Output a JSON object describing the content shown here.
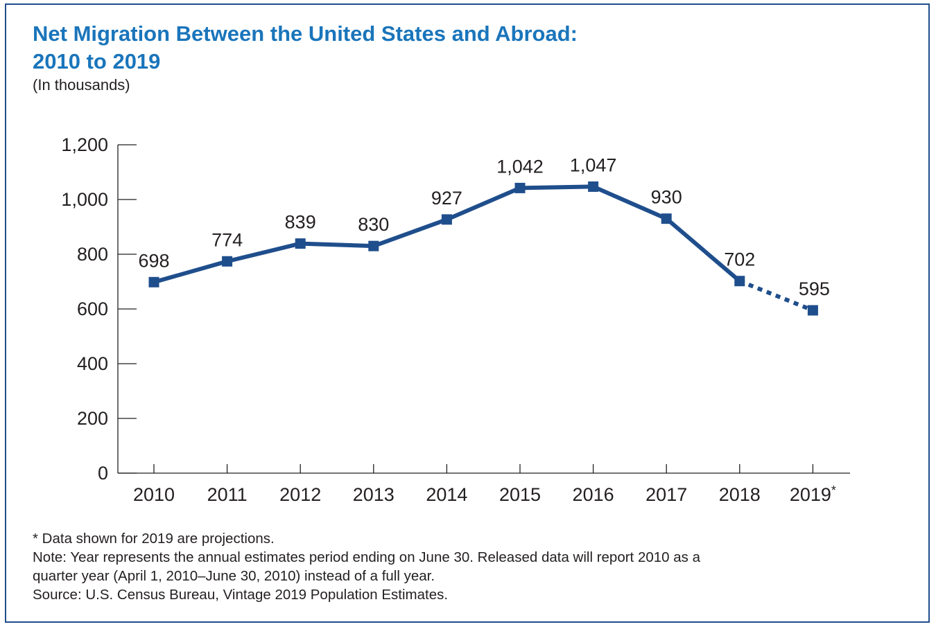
{
  "title_line1": "Net Migration Between the United States and Abroad:",
  "title_line2": "2010 to 2019",
  "subtitle": "(In thousands)",
  "chart_data": {
    "type": "line",
    "title": "Net Migration Between the United States and Abroad: 2010 to 2019",
    "unit": "(In thousands)",
    "categories": [
      "2010",
      "2011",
      "2012",
      "2013",
      "2014",
      "2015",
      "2016",
      "2017",
      "2018",
      "2019"
    ],
    "category_suffix": {
      "2019": "*"
    },
    "series": [
      {
        "values": [
          698,
          774,
          839,
          830,
          927,
          1042,
          1047,
          930,
          702,
          595
        ],
        "labels": [
          "698",
          "774",
          "839",
          "830",
          "927",
          "1,042",
          "1,047",
          "930",
          "702",
          "595"
        ],
        "color": "#1f4e8c",
        "dashed_from_index": 8
      }
    ],
    "ylim": [
      0,
      1200
    ],
    "yticks": [
      0,
      200,
      400,
      600,
      800,
      1000,
      1200
    ],
    "ytick_labels": [
      "0",
      "200",
      "400",
      "600",
      "800",
      "1,000",
      "1,200"
    ],
    "grid": false,
    "legend": "none"
  },
  "footnotes": {
    "projection": "* Data shown for 2019 are projections.",
    "note_line1": "Note: Year represents the annual estimates period ending on June 30. Released data will report 2010 as a",
    "note_line2": "quarter year (April 1, 2010–June 30, 2010) instead of a full year.",
    "source": "Source: U.S. Census Bureau, Vintage 2019 Population Estimates."
  },
  "colors": {
    "title": "#1a75bb",
    "line": "#1f4e8c",
    "border": "#1f4e8c",
    "text": "#231f20"
  }
}
